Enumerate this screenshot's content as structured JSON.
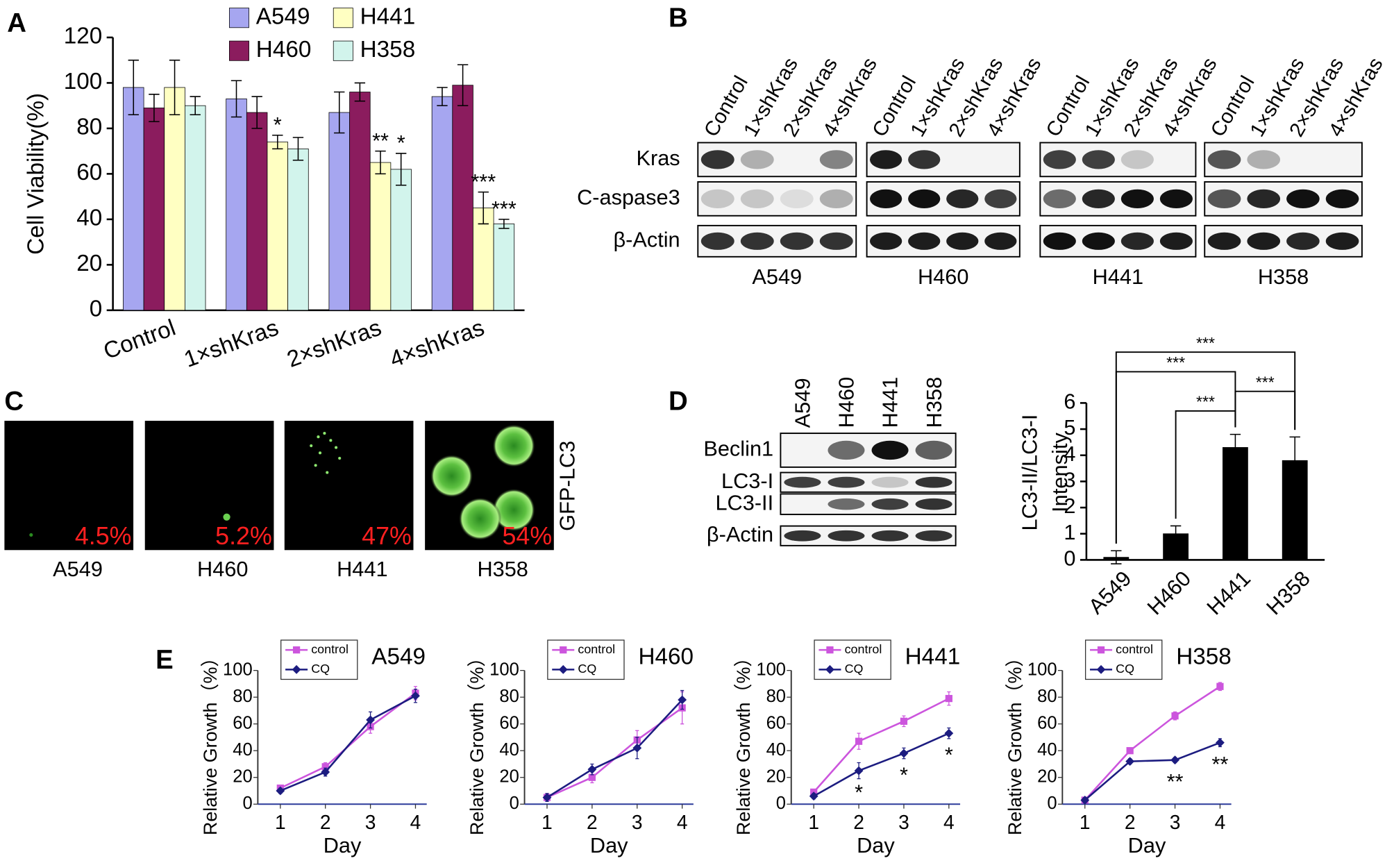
{
  "panel_labels": [
    "A",
    "B",
    "C",
    "D",
    "E"
  ],
  "chart_data": [
    {
      "type": "bar",
      "ylabel": "Cell Viability(%)",
      "categories": [
        "Control",
        "1×shKras",
        "2×shKras",
        "4×shKras"
      ],
      "series": [
        {
          "name": "A549",
          "color": "#a6a6f0",
          "values": [
            98,
            93,
            87,
            94
          ],
          "errors": [
            12,
            8,
            9,
            4
          ]
        },
        {
          "name": "H460",
          "color": "#8b1c5e",
          "values": [
            89,
            87,
            96,
            99
          ],
          "errors": [
            6,
            7,
            4,
            9
          ]
        },
        {
          "name": "H441",
          "color": "#ffffc2",
          "values": [
            98,
            74,
            65,
            45
          ],
          "errors": [
            12,
            3,
            5,
            7
          ],
          "significance": [
            null,
            "*",
            "**",
            "***"
          ]
        },
        {
          "name": "H358",
          "color": "#d2f4ec",
          "values": [
            90,
            71,
            62,
            38
          ],
          "errors": [
            4,
            5,
            7,
            2
          ],
          "significance": [
            null,
            null,
            "*",
            "***"
          ]
        }
      ],
      "ylim": [
        0,
        120
      ],
      "yticks": [
        0,
        20,
        40,
        60,
        80,
        100,
        120
      ]
    },
    {
      "type": "bar",
      "ylabel": [
        "LC3-II/LC3-I",
        "Intensity"
      ],
      "categories": [
        "A549",
        "H460",
        "H441",
        "H358"
      ],
      "values": [
        0.1,
        1.0,
        4.3,
        3.8
      ],
      "errors": [
        0.25,
        0.3,
        0.5,
        0.9
      ],
      "color": "#000000",
      "ylim": [
        0,
        6
      ],
      "yticks": [
        0,
        1,
        2,
        3,
        4,
        5,
        6
      ],
      "comparisons": [
        {
          "from": "A549",
          "to": "H358",
          "label": "***"
        },
        {
          "from": "A549",
          "to": "H441",
          "label": "***"
        },
        {
          "from": "H441",
          "to": "H358",
          "label": "***"
        },
        {
          "from": "H460",
          "to": "H441",
          "label": "***"
        }
      ]
    },
    {
      "type": "line",
      "title": "A549",
      "xlabel": "Day",
      "ylabel": "Relative Growth（%）",
      "x": [
        1,
        2,
        3,
        4
      ],
      "xlim": [
        0.5,
        4.25
      ],
      "xticks": [
        1,
        2,
        3,
        4
      ],
      "ylim": [
        0,
        100
      ],
      "yticks": [
        0,
        20,
        40,
        60,
        80,
        100
      ],
      "series": [
        {
          "name": "control",
          "color": "#cc55dd",
          "marker": "square",
          "values": [
            12,
            28,
            58,
            83
          ],
          "errors": [
            2,
            3,
            5,
            5
          ]
        },
        {
          "name": "CQ",
          "color": "#1c1c80",
          "marker": "diamond",
          "values": [
            10,
            24,
            63,
            81
          ],
          "errors": [
            2,
            3,
            6,
            5
          ]
        }
      ]
    },
    {
      "type": "line",
      "title": "H460",
      "xlabel": "Day",
      "ylabel": "Relative Growth（%）",
      "x": [
        1,
        2,
        3,
        4
      ],
      "xlim": [
        0.5,
        4.25
      ],
      "xticks": [
        1,
        2,
        3,
        4
      ],
      "ylim": [
        0,
        100
      ],
      "yticks": [
        0,
        20,
        40,
        60,
        80,
        100
      ],
      "series": [
        {
          "name": "control",
          "color": "#cc55dd",
          "marker": "square",
          "values": [
            5,
            20,
            48,
            72
          ],
          "errors": [
            3,
            4,
            7,
            12
          ]
        },
        {
          "name": "CQ",
          "color": "#1c1c80",
          "marker": "diamond",
          "values": [
            5,
            26,
            42,
            78
          ],
          "errors": [
            3,
            4,
            8,
            7
          ]
        }
      ]
    },
    {
      "type": "line",
      "title": "H441",
      "xlabel": "Day",
      "ylabel": "Relative Growth（%）",
      "x": [
        1,
        2,
        3,
        4
      ],
      "xlim": [
        0.5,
        4.25
      ],
      "xticks": [
        1,
        2,
        3,
        4
      ],
      "ylim": [
        0,
        100
      ],
      "yticks": [
        0,
        20,
        40,
        60,
        80,
        100
      ],
      "series": [
        {
          "name": "control",
          "color": "#cc55dd",
          "marker": "square",
          "values": [
            9,
            47,
            62,
            79
          ],
          "errors": [
            2,
            6,
            4,
            5
          ]
        },
        {
          "name": "CQ",
          "color": "#1c1c80",
          "marker": "diamond",
          "values": [
            6,
            25,
            38,
            53
          ],
          "errors": [
            2,
            6,
            4,
            4
          ]
        }
      ],
      "significance": [
        null,
        "*",
        "*",
        "*"
      ]
    },
    {
      "type": "line",
      "title": "H358",
      "xlabel": "Day",
      "ylabel": "Relative Growth（%）",
      "x": [
        1,
        2,
        3,
        4
      ],
      "xlim": [
        0.5,
        4.25
      ],
      "xticks": [
        1,
        2,
        3,
        4
      ],
      "ylim": [
        0,
        100
      ],
      "yticks": [
        0,
        20,
        40,
        60,
        80,
        100
      ],
      "series": [
        {
          "name": "control",
          "color": "#cc55dd",
          "marker": "square",
          "values": [
            3,
            40,
            66,
            88
          ],
          "errors": [
            2,
            2,
            3,
            3
          ]
        },
        {
          "name": "CQ",
          "color": "#1c1c80",
          "marker": "diamond",
          "values": [
            3,
            32,
            33,
            46
          ],
          "errors": [
            2,
            2,
            2,
            3
          ]
        }
      ],
      "significance": [
        null,
        null,
        "**",
        "**"
      ]
    }
  ],
  "blot_b": {
    "lanes": [
      "Control",
      "1×shKras",
      "2×shKras",
      "4×shKras"
    ],
    "rows": [
      "Kras",
      "C-aspase3",
      "β-Actin"
    ],
    "groups": [
      "A549",
      "H460",
      "H441",
      "H358"
    ]
  },
  "microscopy": {
    "marker": "GFP-LC3",
    "panels": [
      {
        "cell": "A549",
        "percent": "4.5%"
      },
      {
        "cell": "H460",
        "percent": "5.2%"
      },
      {
        "cell": "H441",
        "percent": "47%"
      },
      {
        "cell": "H358",
        "percent": "54%"
      }
    ]
  },
  "blot_d": {
    "lanes": [
      "A549",
      "H460",
      "H441",
      "H358"
    ],
    "rows": [
      "Beclin1",
      "LC3-I",
      "LC3-II",
      "β-Actin"
    ]
  }
}
